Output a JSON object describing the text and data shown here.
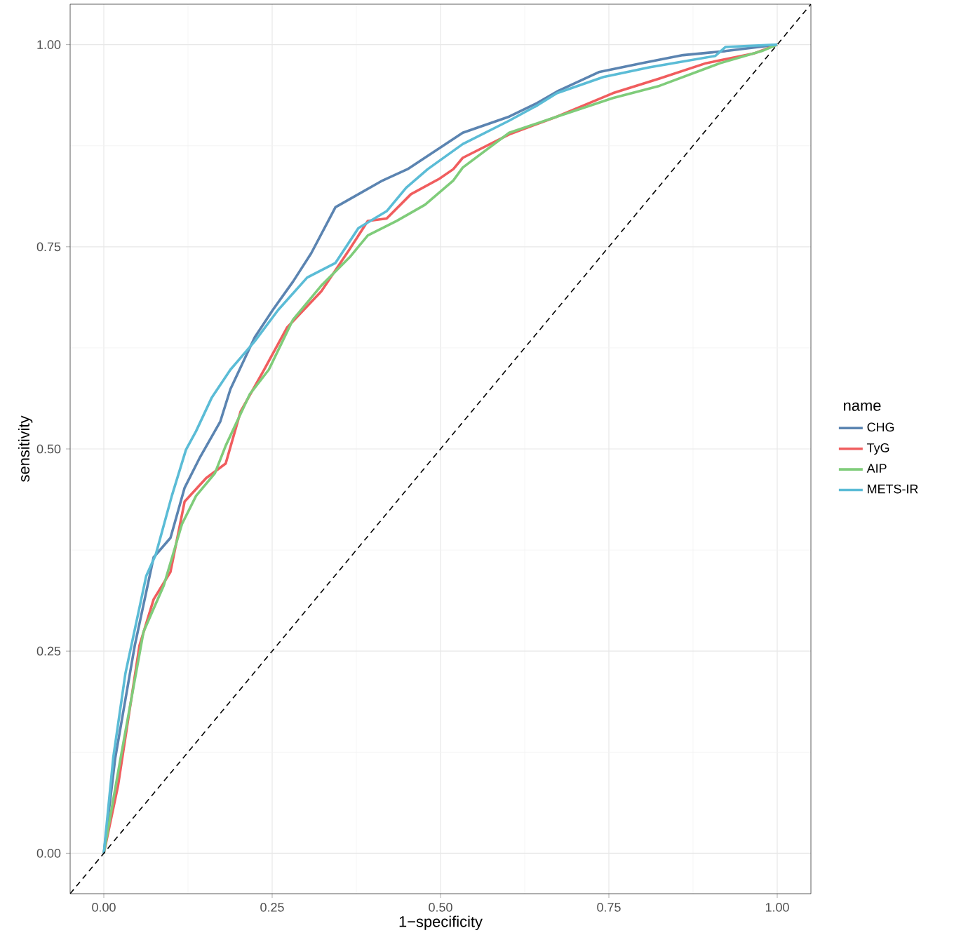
{
  "chart_data": {
    "type": "line",
    "xlabel": "1−specificity",
    "ylabel": "sensitivity",
    "legend_title": "name",
    "legend": "right",
    "grid": true,
    "xlim": [
      -0.05,
      1.05
    ],
    "ylim": [
      -0.05,
      1.05
    ],
    "xticks": [
      {
        "value": 0,
        "label": "0.00"
      },
      {
        "value": 0.25,
        "label": "0.25"
      },
      {
        "value": 0.5,
        "label": "0.50"
      },
      {
        "value": 0.75,
        "label": "0.75"
      },
      {
        "value": 1,
        "label": "1.00"
      }
    ],
    "yticks": [
      {
        "value": 0,
        "label": "0.00"
      },
      {
        "value": 0.25,
        "label": "0.25"
      },
      {
        "value": 0.5,
        "label": "0.50"
      },
      {
        "value": 0.75,
        "label": "0.75"
      },
      {
        "value": 1,
        "label": "1.00"
      }
    ],
    "series": [
      {
        "name": "CHG",
        "color": "#5b84b1",
        "x": [
          0,
          0.017,
          0.046,
          0.074,
          0.099,
          0.12,
          0.143,
          0.173,
          0.188,
          0.224,
          0.251,
          0.281,
          0.308,
          0.344,
          0.378,
          0.414,
          0.451,
          0.533,
          0.602,
          0.644,
          0.673,
          0.735,
          0.798,
          0.86,
          0.923,
          1
        ],
        "values": [
          0,
          0.118,
          0.257,
          0.366,
          0.39,
          0.452,
          0.49,
          0.534,
          0.574,
          0.638,
          0.672,
          0.707,
          0.742,
          0.799,
          0.815,
          0.832,
          0.846,
          0.891,
          0.911,
          0.928,
          0.942,
          0.966,
          0.977,
          0.987,
          0.992,
          1
        ]
      },
      {
        "name": "TyG",
        "color": "#f05d5e",
        "x": [
          0,
          0.021,
          0.053,
          0.074,
          0.099,
          0.12,
          0.152,
          0.181,
          0.203,
          0.238,
          0.272,
          0.323,
          0.365,
          0.392,
          0.42,
          0.456,
          0.498,
          0.519,
          0.533,
          0.602,
          0.673,
          0.756,
          0.825,
          0.894,
          0.965,
          1
        ],
        "values": [
          0,
          0.083,
          0.257,
          0.314,
          0.348,
          0.435,
          0.464,
          0.482,
          0.546,
          0.598,
          0.65,
          0.695,
          0.747,
          0.782,
          0.785,
          0.815,
          0.834,
          0.846,
          0.86,
          0.889,
          0.911,
          0.94,
          0.958,
          0.977,
          0.989,
          1
        ]
      },
      {
        "name": "AIP",
        "color": "#7fcc7a",
        "x": [
          0,
          0.025,
          0.059,
          0.089,
          0.116,
          0.137,
          0.165,
          0.181,
          0.217,
          0.245,
          0.281,
          0.323,
          0.365,
          0.392,
          0.435,
          0.477,
          0.519,
          0.533,
          0.602,
          0.673,
          0.756,
          0.825,
          0.915,
          0.977,
          1
        ],
        "values": [
          0,
          0.118,
          0.274,
          0.331,
          0.407,
          0.442,
          0.47,
          0.504,
          0.568,
          0.598,
          0.66,
          0.702,
          0.737,
          0.764,
          0.782,
          0.802,
          0.832,
          0.848,
          0.891,
          0.911,
          0.934,
          0.949,
          0.977,
          0.992,
          1
        ]
      },
      {
        "name": "METS-IR",
        "color": "#5bbcd6",
        "x": [
          0,
          0.014,
          0.032,
          0.063,
          0.077,
          0.101,
          0.122,
          0.137,
          0.16,
          0.188,
          0.224,
          0.259,
          0.302,
          0.344,
          0.378,
          0.42,
          0.449,
          0.481,
          0.533,
          0.602,
          0.644,
          0.673,
          0.742,
          0.81,
          0.908,
          0.923,
          1
        ],
        "values": [
          0,
          0.118,
          0.222,
          0.343,
          0.369,
          0.442,
          0.499,
          0.522,
          0.563,
          0.598,
          0.633,
          0.672,
          0.712,
          0.73,
          0.773,
          0.794,
          0.823,
          0.846,
          0.877,
          0.906,
          0.925,
          0.94,
          0.96,
          0.972,
          0.986,
          0.997,
          1
        ]
      },
      {
        "color": "#000000",
        "line_style": "dashed",
        "x": [
          -0.05,
          1.05
        ],
        "values": [
          -0.05,
          1.05
        ]
      }
    ]
  }
}
